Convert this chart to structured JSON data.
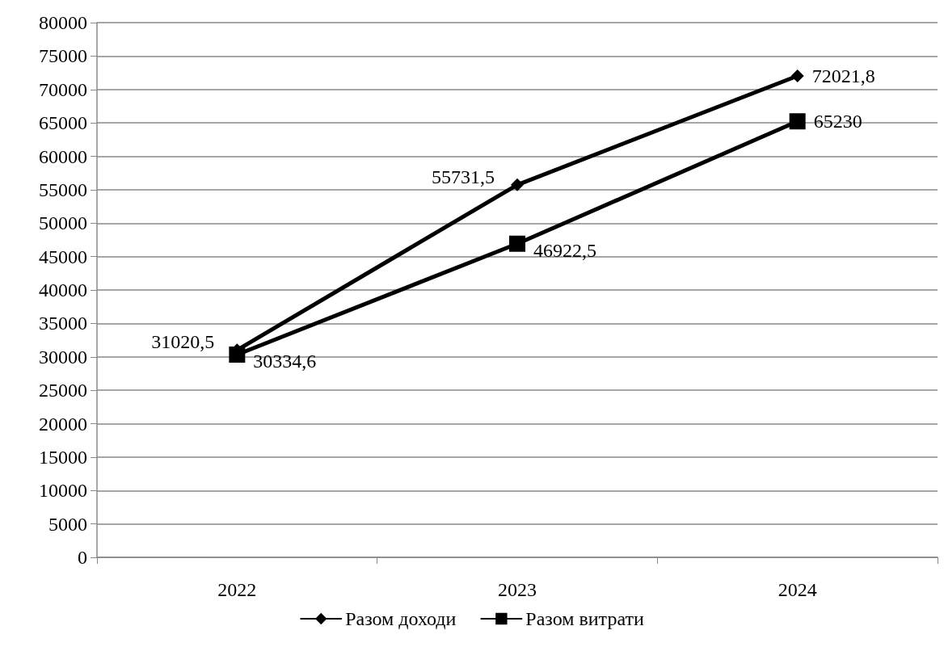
{
  "chart_data": {
    "type": "line",
    "categories": [
      "2022",
      "2023",
      "2024"
    ],
    "series": [
      {
        "name": "Разом доходи",
        "color": "#000000",
        "marker": "diamond",
        "values": [
          31020.5,
          55731.5,
          72021.8
        ],
        "value_labels": [
          "31020,5",
          "55731,5",
          "72021,8"
        ]
      },
      {
        "name": "Разом витрати",
        "color": "#000000",
        "marker": "square",
        "values": [
          30334.6,
          46922.5,
          65230
        ],
        "value_labels": [
          "30334,6",
          "46922,5",
          "65230"
        ]
      }
    ],
    "ylim": [
      0,
      80000
    ],
    "yticks": [
      0,
      5000,
      10000,
      15000,
      20000,
      25000,
      30000,
      35000,
      40000,
      45000,
      50000,
      55000,
      60000,
      65000,
      70000,
      75000,
      80000
    ],
    "grid": "y",
    "legend": "bottom",
    "line_style": "solid"
  }
}
